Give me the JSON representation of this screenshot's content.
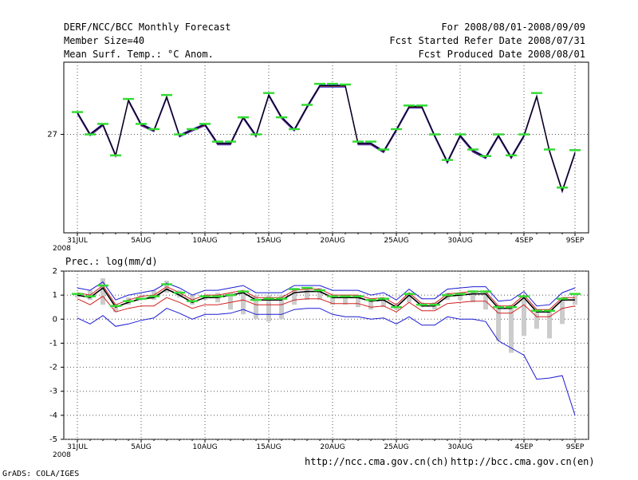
{
  "header": {
    "title": "DERF/NCC/BCC Monthly Forecast",
    "member_size": "Member Size=40",
    "variable": "Mean Surf. Temp.: °C Anom.",
    "forecast_period": "For 2008/08/01-2008/09/09",
    "refer_date": "Fcst Started Refer Date 2008/07/31",
    "produced_date": "Fcst Produced Date 2008/08/01"
  },
  "footer": {
    "credit": "GrADS: COLA/IGES",
    "url_ch": "http://ncc.cma.gov.cn(ch)",
    "url_en": "http://bcc.cma.gov.cn(en)"
  },
  "colors": {
    "ensemble_mean": "#000000",
    "member_line": "#1a1ad4",
    "spread_red": "#d42020",
    "marker_green": "#33dd33",
    "bar_gray": "#cccccc",
    "grid": "#555555"
  },
  "chart_data": [
    {
      "type": "line",
      "title": "Mean Surf. Temp.: °C Anom.",
      "x_tick_labels": [
        "31JUL",
        "5AUG",
        "10AUG",
        "15AUG",
        "20AUG",
        "25AUG",
        "30AUG",
        "4SEP",
        "9SEP"
      ],
      "x_year_label": "2008",
      "y_tick_labels": [
        "27"
      ],
      "ylim": [
        25.5,
        28.1
      ],
      "x": [
        0,
        1,
        2,
        3,
        4,
        5,
        6,
        7,
        8,
        9,
        10,
        11,
        12,
        13,
        14,
        15,
        16,
        17,
        18,
        19,
        20,
        21,
        22,
        23,
        24,
        25,
        26,
        27,
        28,
        29,
        30,
        31,
        32,
        33,
        34,
        35,
        36,
        37,
        38,
        39
      ],
      "series": [
        {
          "name": "ensemble",
          "values": [
            27.33,
            27.0,
            27.15,
            26.68,
            27.52,
            27.15,
            27.06,
            27.57,
            26.98,
            27.07,
            27.15,
            26.86,
            26.86,
            27.26,
            26.98,
            27.6,
            27.26,
            27.07,
            27.42,
            27.74,
            27.74,
            27.74,
            26.86,
            26.86,
            26.74,
            27.07,
            27.42,
            27.42,
            26.98,
            26.58,
            26.98,
            26.75,
            26.65,
            26.98,
            26.65,
            26.98,
            27.58,
            26.75,
            26.14,
            26.72
          ]
        },
        {
          "name": "markers",
          "values": [
            27.34,
            27.0,
            27.16,
            26.68,
            27.54,
            27.16,
            27.08,
            27.6,
            27.0,
            27.08,
            27.16,
            26.89,
            26.89,
            27.26,
            27.0,
            27.63,
            27.26,
            27.08,
            27.45,
            27.77,
            27.77,
            27.76,
            26.89,
            26.89,
            26.77,
            27.08,
            27.44,
            27.44,
            27.0,
            26.61,
            27.0,
            26.77,
            26.67,
            27.0,
            26.68,
            27.0,
            27.63,
            26.77,
            26.19,
            26.76
          ]
        }
      ]
    },
    {
      "type": "line",
      "title": "Prec.: log(mm/d)",
      "x_tick_labels": [
        "31JUL",
        "5AUG",
        "10AUG",
        "15AUG",
        "20AUG",
        "25AUG",
        "30AUG",
        "4SEP",
        "9SEP"
      ],
      "x_year_label": "2008",
      "y_tick_labels": [
        "2",
        "1",
        "0",
        "-1",
        "-2",
        "-3",
        "-4",
        "-5"
      ],
      "ylim": [
        -5,
        2
      ],
      "x": [
        0,
        1,
        2,
        3,
        4,
        5,
        6,
        7,
        8,
        9,
        10,
        11,
        12,
        13,
        14,
        15,
        16,
        17,
        18,
        19,
        20,
        21,
        22,
        23,
        24,
        25,
        26,
        27,
        28,
        29,
        30,
        31,
        32,
        33,
        34,
        35,
        36,
        37,
        38,
        39
      ],
      "series": [
        {
          "name": "ensemble_mean",
          "values": [
            1.0,
            0.9,
            1.3,
            0.5,
            0.7,
            0.85,
            0.9,
            1.25,
            1.0,
            0.7,
            0.9,
            0.9,
            1.0,
            1.1,
            0.8,
            0.8,
            0.8,
            1.1,
            1.15,
            1.15,
            0.9,
            0.9,
            0.9,
            0.75,
            0.8,
            0.5,
            1.0,
            0.55,
            0.55,
            0.95,
            1.0,
            1.05,
            1.05,
            0.45,
            0.45,
            0.9,
            0.3,
            0.3,
            0.8,
            0.8
          ]
        },
        {
          "name": "upper_blue",
          "values": [
            1.3,
            1.2,
            1.55,
            0.8,
            1.0,
            1.1,
            1.2,
            1.5,
            1.3,
            1.0,
            1.2,
            1.2,
            1.3,
            1.4,
            1.1,
            1.1,
            1.1,
            1.4,
            1.4,
            1.4,
            1.2,
            1.2,
            1.2,
            1.0,
            1.1,
            0.8,
            1.25,
            0.85,
            0.85,
            1.25,
            1.3,
            1.35,
            1.35,
            0.75,
            0.8,
            1.15,
            0.55,
            0.6,
            1.1,
            1.3
          ]
        },
        {
          "name": "upper_red",
          "values": [
            1.1,
            1.0,
            1.4,
            0.6,
            0.8,
            0.95,
            1.0,
            1.35,
            1.1,
            0.8,
            1.0,
            1.0,
            1.1,
            1.2,
            0.9,
            0.9,
            0.9,
            1.2,
            1.25,
            1.25,
            1.0,
            1.0,
            1.0,
            0.85,
            0.9,
            0.6,
            1.1,
            0.65,
            0.65,
            1.05,
            1.1,
            1.15,
            1.15,
            0.55,
            0.55,
            1.0,
            0.4,
            0.4,
            0.9,
            0.9
          ]
        },
        {
          "name": "lower_red",
          "values": [
            0.85,
            0.6,
            0.95,
            0.3,
            0.45,
            0.55,
            0.55,
            0.9,
            0.7,
            0.45,
            0.6,
            0.6,
            0.7,
            0.8,
            0.6,
            0.6,
            0.6,
            0.8,
            0.85,
            0.85,
            0.65,
            0.65,
            0.65,
            0.5,
            0.55,
            0.3,
            0.7,
            0.35,
            0.35,
            0.65,
            0.7,
            0.75,
            0.75,
            0.25,
            0.25,
            0.6,
            0.1,
            0.1,
            0.45,
            0.55
          ]
        },
        {
          "name": "lower_blue",
          "values": [
            0.05,
            -0.2,
            0.15,
            -0.3,
            -0.2,
            -0.05,
            0.05,
            0.45,
            0.25,
            0.0,
            0.2,
            0.2,
            0.25,
            0.4,
            0.2,
            0.2,
            0.2,
            0.4,
            0.45,
            0.45,
            0.2,
            0.1,
            0.1,
            0.0,
            0.05,
            -0.2,
            0.1,
            -0.25,
            -0.25,
            0.1,
            0.0,
            0.0,
            -0.1,
            -0.9,
            -1.2,
            -1.5,
            -2.5,
            -2.45,
            -2.35,
            -4.0
          ]
        },
        {
          "name": "markers",
          "values": [
            1.05,
            0.95,
            1.4,
            0.55,
            0.75,
            0.85,
            0.95,
            1.45,
            1.1,
            0.75,
            0.95,
            0.95,
            1.0,
            1.15,
            0.8,
            0.85,
            0.85,
            1.25,
            1.3,
            1.2,
            0.95,
            0.95,
            0.95,
            0.8,
            0.85,
            0.5,
            1.05,
            0.6,
            0.6,
            1.0,
            1.05,
            1.15,
            1.15,
            0.5,
            0.5,
            0.95,
            0.35,
            0.35,
            0.85,
            1.05
          ]
        },
        {
          "name": "gray_bars_top",
          "values": [
            1.0,
            1.2,
            1.7,
            0.6,
            0.9,
            1.0,
            1.2,
            1.6,
            1.2,
            1.0,
            1.0,
            1.1,
            1.1,
            1.2,
            1.0,
            1.0,
            1.0,
            1.3,
            1.3,
            1.3,
            1.0,
            1.0,
            1.0,
            0.8,
            0.9,
            0.6,
            1.1,
            0.7,
            0.7,
            1.1,
            1.1,
            1.2,
            1.2,
            0.6,
            0.6,
            1.0,
            0.4,
            0.4,
            0.9,
            1.0
          ]
        },
        {
          "name": "gray_bars_bottom",
          "values": [
            0.9,
            0.8,
            0.6,
            0.3,
            0.6,
            0.9,
            0.8,
            1.1,
            0.9,
            0.6,
            0.8,
            0.7,
            0.4,
            0.2,
            0.0,
            -0.1,
            0.0,
            0.6,
            0.8,
            0.8,
            0.6,
            0.6,
            0.5,
            0.4,
            0.5,
            0.4,
            0.7,
            0.5,
            0.4,
            0.8,
            0.8,
            0.7,
            0.4,
            -0.9,
            -1.4,
            -0.7,
            -0.4,
            -0.8,
            -0.2,
            0.6
          ]
        }
      ]
    }
  ]
}
